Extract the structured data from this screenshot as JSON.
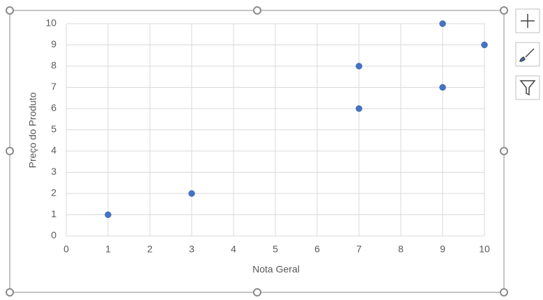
{
  "chart_data": {
    "type": "scatter",
    "x": [
      1,
      3,
      7,
      7,
      9,
      9,
      10
    ],
    "values": [
      1,
      2,
      8,
      6,
      10,
      7,
      9
    ],
    "color": "#4472c4",
    "x_label": "Nota Geral",
    "y_label": "Preço do Produto",
    "xlim": [
      0,
      10
    ],
    "xticks": [
      0,
      1,
      2,
      3,
      4,
      5,
      6,
      7,
      8,
      9,
      10
    ],
    "ylim": [
      0,
      10
    ],
    "yticks": [
      0,
      1,
      2,
      3,
      4,
      5,
      6,
      7,
      8,
      9,
      10
    ],
    "grid": true
  }
}
